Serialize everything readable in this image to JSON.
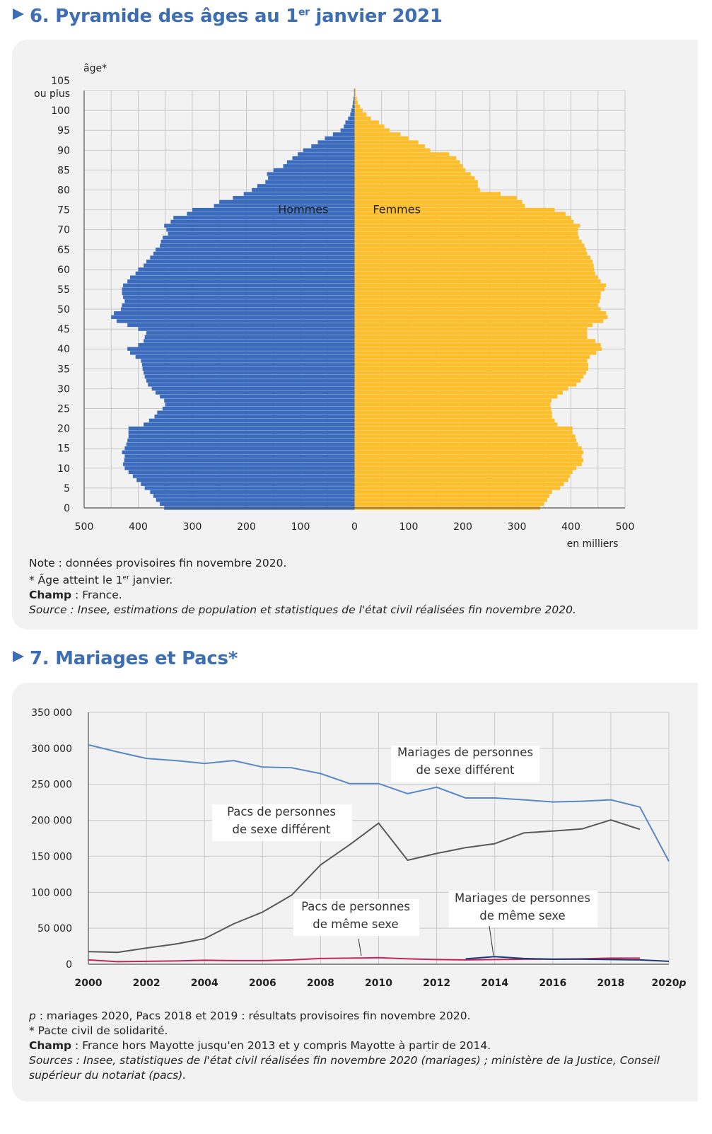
{
  "pyramid": {
    "title_main": "6. Pyramide des âges au 1",
    "title_sup": "er",
    "title_end": " janvier 2021",
    "notes": {
      "note": "Note : données provisoires fin novembre 2020.",
      "age_note_a": "* Âge atteint le 1",
      "age_note_sup": "er",
      "age_note_b": " janvier.",
      "champ_label": "Champ",
      "champ_text": " : France.",
      "source": "Source : Insee, estimations de population et statistiques de l'état civil réalisées fin novembre 2020."
    }
  },
  "mariages": {
    "title": "7. Mariages et Pacs*",
    "notes": {
      "p_label": "p",
      "p_text": " : mariages 2020, Pacs 2018 et 2019 : résultats provisoires fin novembre 2020.",
      "pacs_note": "* Pacte civil de solidarité.",
      "champ_label": "Champ",
      "champ_text": " : France hors Mayotte jusqu'en 2013 et y compris Mayotte à partir de 2014.",
      "source_1": "Sources : Insee, statistiques de l'état civil réalisées fin novembre 2020 (mariages) ; ministère de la Justice, Conseil",
      "source_2": "supérieur du notariat (pacs)."
    }
  },
  "chart_data": [
    {
      "type": "bar",
      "subtype": "population-pyramid",
      "ylabel": "âge*",
      "xlabel": "en milliers",
      "y_ticks": [
        "0",
        "5",
        "10",
        "15",
        "20",
        "25",
        "30",
        "35",
        "40",
        "45",
        "50",
        "55",
        "60",
        "65",
        "70",
        "75",
        "80",
        "85",
        "90",
        "95",
        "100",
        "105\nou plus"
      ],
      "x_ticks": [
        "500",
        "400",
        "300",
        "200",
        "100",
        "0",
        "100",
        "200",
        "300",
        "400",
        "500"
      ],
      "xlim": [
        -500,
        500
      ],
      "colors": {
        "Hommes": "#3a6bbd",
        "Femmes": "#fdbe2c"
      },
      "ages": [
        0,
        1,
        2,
        3,
        4,
        5,
        6,
        7,
        8,
        9,
        10,
        11,
        12,
        13,
        14,
        15,
        16,
        17,
        18,
        19,
        20,
        21,
        22,
        23,
        24,
        25,
        26,
        27,
        28,
        29,
        30,
        31,
        32,
        33,
        34,
        35,
        36,
        37,
        38,
        39,
        40,
        41,
        42,
        43,
        44,
        45,
        46,
        47,
        48,
        49,
        50,
        51,
        52,
        53,
        54,
        55,
        56,
        57,
        58,
        59,
        60,
        61,
        62,
        63,
        64,
        65,
        66,
        67,
        68,
        69,
        70,
        71,
        72,
        73,
        74,
        75,
        76,
        77,
        78,
        79,
        80,
        81,
        82,
        83,
        84,
        85,
        86,
        87,
        88,
        89,
        90,
        91,
        92,
        93,
        94,
        95,
        96,
        97,
        98,
        99,
        100,
        101,
        102,
        103,
        104,
        105
      ],
      "series": [
        {
          "name": "Hommes",
          "values": [
            352,
            360,
            367,
            372,
            378,
            388,
            395,
            403,
            410,
            418,
            425,
            428,
            426,
            425,
            430,
            425,
            422,
            420,
            418,
            418,
            418,
            390,
            380,
            370,
            365,
            355,
            350,
            352,
            360,
            368,
            375,
            382,
            385,
            388,
            390,
            392,
            393,
            395,
            405,
            415,
            420,
            400,
            390,
            388,
            385,
            400,
            420,
            440,
            450,
            445,
            432,
            430,
            425,
            428,
            430,
            430,
            428,
            420,
            415,
            405,
            400,
            390,
            385,
            378,
            372,
            368,
            360,
            358,
            355,
            345,
            348,
            352,
            340,
            335,
            310,
            300,
            260,
            250,
            225,
            205,
            190,
            180,
            165,
            160,
            162,
            150,
            132,
            125,
            115,
            105,
            95,
            80,
            68,
            55,
            40,
            26,
            20,
            17,
            12,
            8,
            6,
            4,
            3,
            2,
            1,
            1
          ]
        },
        {
          "name": "Femmes",
          "values": [
            343,
            350,
            356,
            360,
            365,
            380,
            387,
            395,
            398,
            403,
            410,
            420,
            423,
            420,
            423,
            420,
            413,
            410,
            408,
            403,
            403,
            375,
            370,
            365,
            365,
            363,
            362,
            364,
            375,
            385,
            395,
            410,
            418,
            423,
            428,
            432,
            432,
            430,
            435,
            447,
            457,
            455,
            445,
            430,
            430,
            430,
            440,
            460,
            468,
            465,
            455,
            450,
            453,
            455,
            455,
            462,
            465,
            455,
            450,
            445,
            443,
            442,
            440,
            436,
            430,
            428,
            425,
            420,
            415,
            413,
            413,
            417,
            405,
            400,
            390,
            370,
            315,
            310,
            300,
            270,
            232,
            228,
            228,
            222,
            215,
            205,
            200,
            195,
            188,
            175,
            140,
            130,
            118,
            100,
            85,
            65,
            55,
            45,
            30,
            22,
            15,
            10,
            6,
            4,
            2,
            2
          ]
        }
      ]
    },
    {
      "type": "line",
      "x": [
        "2000",
        "2002",
        "2004",
        "2006",
        "2008",
        "2010",
        "2012",
        "2014",
        "2016",
        "2018",
        "2020p"
      ],
      "x_ticks": [
        "2000",
        "2002",
        "2004",
        "2006",
        "2008",
        "2010",
        "2012",
        "2014",
        "2016",
        "2018",
        "2020"
      ],
      "x_tick_last_suffix": "p",
      "y_ticks": [
        "0",
        "50 000",
        "100 000",
        "150 000",
        "200 000",
        "250 000",
        "300 000",
        "350 000"
      ],
      "ylim": [
        0,
        350000
      ],
      "xlim": [
        2000,
        2020
      ],
      "grid": true,
      "series": [
        {
          "name": "Mariages de personnes de sexe différent",
          "label_lines": [
            "Mariages de personnes",
            "de sexe différent"
          ],
          "color": "#5b87c5",
          "points": [
            [
              2000,
              305000
            ],
            [
              2001,
              295000
            ],
            [
              2002,
              286000
            ],
            [
              2003,
              283000
            ],
            [
              2004,
              279000
            ],
            [
              2005,
              283000
            ],
            [
              2006,
              274000
            ],
            [
              2007,
              273000
            ],
            [
              2008,
              265000
            ],
            [
              2009,
              251000
            ],
            [
              2010,
              251000
            ],
            [
              2011,
              237000
            ],
            [
              2012,
              246000
            ],
            [
              2013,
              231000
            ],
            [
              2014,
              231000
            ],
            [
              2015,
              228500
            ],
            [
              2016,
              225500
            ],
            [
              2017,
              226500
            ],
            [
              2018,
              228500
            ],
            [
              2019,
              218500
            ],
            [
              2020,
              143000
            ]
          ]
        },
        {
          "name": "Pacs de personnes de sexe différent",
          "label_lines": [
            "Pacs de personnes",
            "de sexe différent"
          ],
          "color": "#595959",
          "points": [
            [
              2000,
              17500
            ],
            [
              2001,
              16500
            ],
            [
              2002,
              22500
            ],
            [
              2003,
              28000
            ],
            [
              2004,
              35500
            ],
            [
              2005,
              56000
            ],
            [
              2006,
              72500
            ],
            [
              2007,
              96000
            ],
            [
              2008,
              138000
            ],
            [
              2009,
              166000
            ],
            [
              2010,
              196000
            ],
            [
              2011,
              144500
            ],
            [
              2012,
              154000
            ],
            [
              2013,
              162000
            ],
            [
              2014,
              167500
            ],
            [
              2015,
              182500
            ],
            [
              2016,
              185000
            ],
            [
              2017,
              188000
            ],
            [
              2018,
              200500
            ],
            [
              2019,
              187500
            ]
          ]
        },
        {
          "name": "Pacs de personnes de même sexe",
          "label_lines": [
            "Pacs de personnes",
            "de même sexe"
          ],
          "color": "#c8245a",
          "points": [
            [
              2000,
              6000
            ],
            [
              2001,
              3500
            ],
            [
              2002,
              4000
            ],
            [
              2003,
              4500
            ],
            [
              2004,
              5500
            ],
            [
              2005,
              5000
            ],
            [
              2006,
              5000
            ],
            [
              2007,
              6000
            ],
            [
              2008,
              8000
            ],
            [
              2009,
              8500
            ],
            [
              2010,
              9000
            ],
            [
              2011,
              7500
            ],
            [
              2012,
              6500
            ],
            [
              2013,
              6000
            ],
            [
              2014,
              6500
            ],
            [
              2015,
              7000
            ],
            [
              2016,
              7000
            ],
            [
              2017,
              7500
            ],
            [
              2018,
              8500
            ],
            [
              2019,
              8500
            ]
          ]
        },
        {
          "name": "Mariages de personnes de même sexe",
          "label_lines": [
            "Mariages de personnes",
            "de même sexe"
          ],
          "color": "#1a3b78",
          "points": [
            [
              2013,
              7500
            ],
            [
              2014,
              10500
            ],
            [
              2015,
              8000
            ],
            [
              2016,
              7000
            ],
            [
              2017,
              7000
            ],
            [
              2018,
              6500
            ],
            [
              2019,
              6000
            ],
            [
              2020,
              4000
            ]
          ]
        }
      ]
    }
  ]
}
